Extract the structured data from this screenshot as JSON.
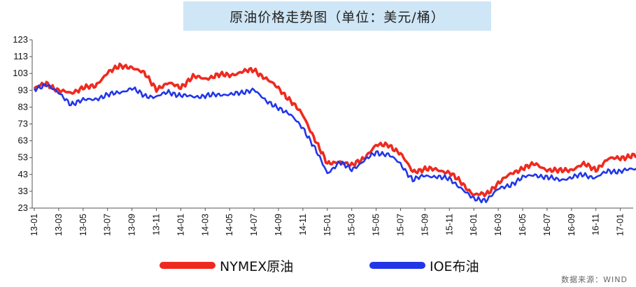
{
  "chart_data": {
    "type": "line",
    "title": "原油价格走势图（单位：美元/桶）",
    "ylim": [
      23,
      123
    ],
    "yticks": [
      23,
      33,
      43,
      53,
      63,
      73,
      83,
      93,
      103,
      113,
      123
    ],
    "xticks": [
      "13-01",
      "13-03",
      "13-05",
      "13-07",
      "13-09",
      "13-11",
      "14-01",
      "14-03",
      "14-05",
      "14-07",
      "14-09",
      "14-11",
      "15-01",
      "15-03",
      "15-05",
      "15-07",
      "15-09",
      "15-11",
      "16-01",
      "16-03",
      "16-05",
      "16-07",
      "16-09",
      "16-11",
      "17-01"
    ],
    "x": [
      "13-01",
      "13-02",
      "13-03",
      "13-04",
      "13-05",
      "13-06",
      "13-07",
      "13-08",
      "13-09",
      "13-10",
      "13-11",
      "13-12",
      "14-01",
      "14-02",
      "14-03",
      "14-04",
      "14-05",
      "14-06",
      "14-07",
      "14-08",
      "14-09",
      "14-10",
      "14-11",
      "14-12",
      "15-01",
      "15-02",
      "15-03",
      "15-04",
      "15-05",
      "15-06",
      "15-07",
      "15-08",
      "15-09",
      "15-10",
      "15-11",
      "15-12",
      "16-01",
      "16-02",
      "16-03",
      "16-04",
      "16-05",
      "16-06",
      "16-07",
      "16-08",
      "16-09",
      "16-10",
      "16-11",
      "16-12",
      "17-01",
      "17-02",
      "17-03"
    ],
    "series": [
      {
        "name": "NYMEX原油",
        "color": "#ee2a1f",
        "values": [
          94,
          97,
          93,
          91,
          95,
          95,
          104,
          107,
          107,
          103,
          94,
          97,
          95,
          101,
          100,
          102,
          102,
          104,
          105,
          100,
          94,
          87,
          78,
          64,
          49,
          51,
          48,
          53,
          60,
          61,
          55,
          45,
          46,
          46,
          44,
          38,
          31,
          31,
          38,
          43,
          47,
          49,
          46,
          45,
          46,
          49,
          46,
          52,
          53,
          54,
          54
        ]
      },
      {
        "name": "IOE布油",
        "color": "#2236e8",
        "values": [
          93,
          97,
          91,
          85,
          87,
          88,
          90,
          92,
          94,
          90,
          89,
          92,
          90,
          89,
          90,
          90,
          91,
          91,
          94,
          86,
          83,
          78,
          71,
          58,
          44,
          50,
          46,
          51,
          56,
          55,
          49,
          40,
          42,
          42,
          40,
          35,
          28,
          28,
          34,
          37,
          41,
          43,
          41,
          40,
          41,
          43,
          41,
          45,
          45,
          46,
          47
        ]
      }
    ]
  },
  "source": "数据来源：WIND"
}
